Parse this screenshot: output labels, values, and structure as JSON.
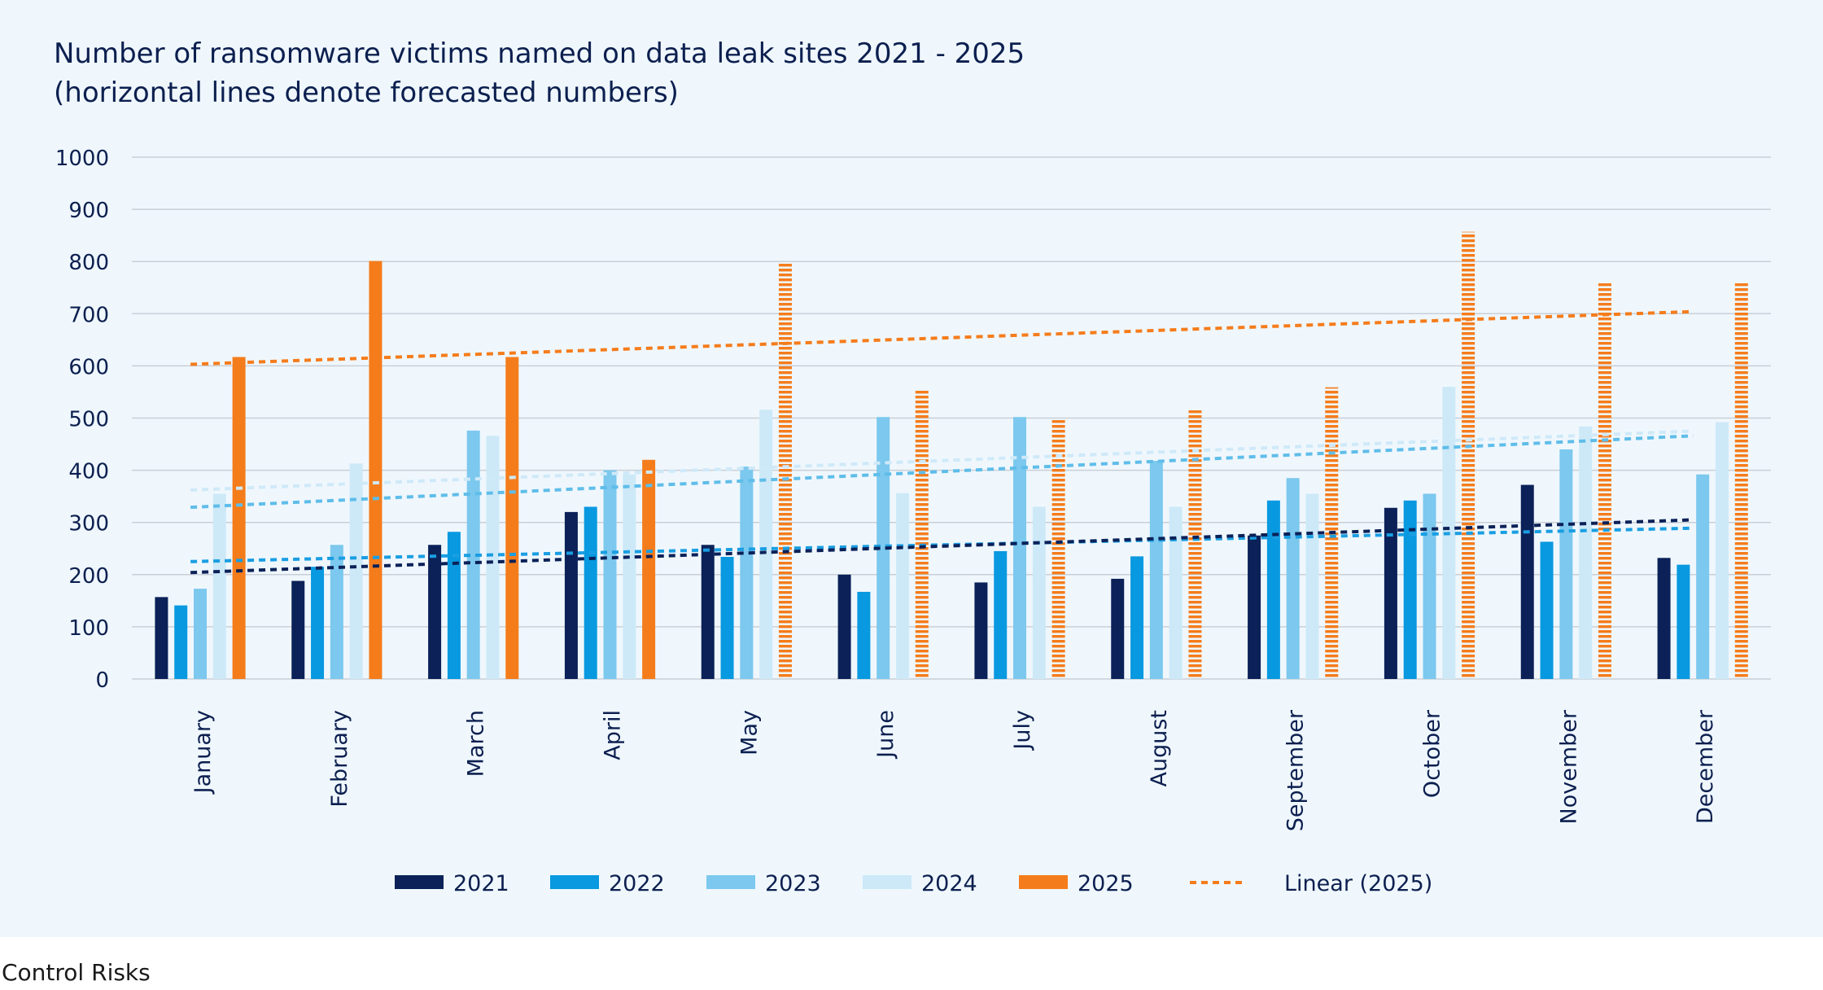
{
  "chart_data": {
    "type": "bar",
    "title_lines": [
      "Number of ransomware victims named on data leak sites 2021 - 2025",
      "(horizontal lines denote forecasted numbers)"
    ],
    "categories": [
      "January",
      "February",
      "March",
      "April",
      "May",
      "June",
      "July",
      "August",
      "September",
      "October",
      "November",
      "December"
    ],
    "ylim": [
      0,
      1000
    ],
    "yticks": [
      0,
      100,
      200,
      300,
      400,
      500,
      600,
      700,
      800,
      900,
      1000
    ],
    "grid": true,
    "legend_position": "bottom",
    "series": [
      {
        "name": "2021",
        "color": "#0b2158",
        "values": [
          157,
          188,
          257,
          320,
          257,
          200,
          185,
          192,
          275,
          328,
          372,
          232
        ],
        "trend": [
          204,
          305
        ]
      },
      {
        "name": "2022",
        "color": "#0899e0",
        "values": [
          141,
          215,
          282,
          330,
          234,
          167,
          245,
          235,
          342,
          342,
          263,
          219
        ],
        "trend": [
          225,
          289
        ]
      },
      {
        "name": "2023",
        "color": "#7cc8ee",
        "values": [
          173,
          257,
          476,
          400,
          407,
          502,
          502,
          418,
          385,
          355,
          440,
          392
        ],
        "trend": [
          329,
          466
        ]
      },
      {
        "name": "2024",
        "color": "#cde9f8",
        "values": [
          355,
          413,
          466,
          392,
          516,
          356,
          330,
          330,
          355,
          560,
          484,
          492
        ],
        "trend": [
          362,
          475
        ]
      },
      {
        "name": "2025",
        "color": "#f57c1b",
        "values": [
          617,
          801,
          617,
          420,
          797,
          556,
          496,
          518,
          559,
          857,
          759,
          759
        ],
        "forecast_from": "May",
        "trend": [
          603,
          704
        ]
      }
    ],
    "legend": [
      "2021",
      "2022",
      "2023",
      "2024",
      "2025",
      "Linear (2025)"
    ]
  },
  "source": "Control Risks"
}
